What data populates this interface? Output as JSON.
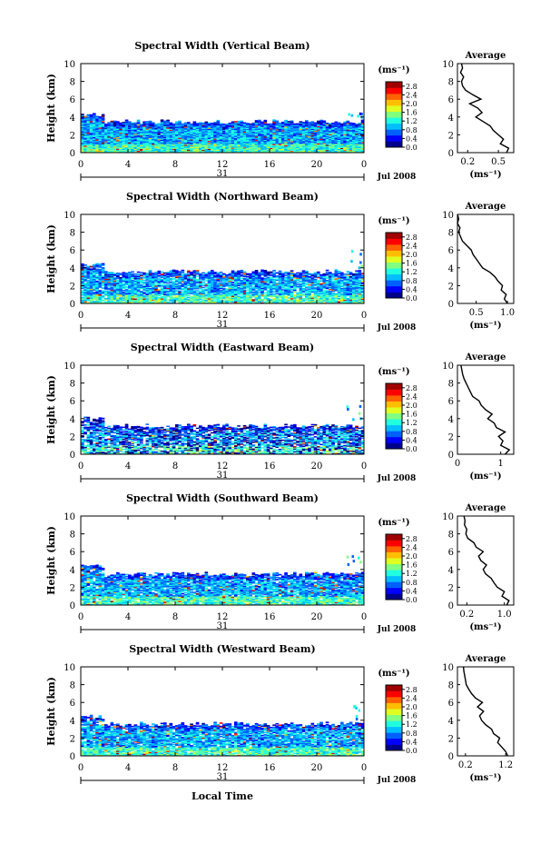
{
  "figure": {
    "xlabel": "Local Time",
    "day_label": "31",
    "month_label": "Jul 2008",
    "unit_label": "(ms⁻¹)",
    "avg_title": "Average",
    "ylabel": "Height (km)"
  },
  "chart_data": [
    {
      "type": "heatmap",
      "title": "Spectral Width (Vertical Beam)",
      "xlim": [
        0,
        24
      ],
      "ylim": [
        0,
        10
      ],
      "xticks": [
        "0",
        "4",
        "8",
        "12",
        "16",
        "20",
        "0"
      ],
      "yticks": [
        "0",
        "2",
        "4",
        "6",
        "8",
        "10"
      ],
      "colorbar": {
        "ticks": [
          "0.0",
          "0.4",
          "0.8",
          "1.2",
          "1.6",
          "2.0",
          "2.4",
          "2.8"
        ],
        "range": [
          0,
          3.0
        ]
      },
      "cloud_top_km": 3.5,
      "average_profile": {
        "xticks": [
          "0.2",
          "0.5"
        ],
        "xlim": [
          0.1,
          0.65
        ],
        "height_km": [
          0,
          0.5,
          1,
          1.5,
          2,
          2.5,
          3,
          3.5,
          4,
          4.5,
          5,
          5.5,
          6,
          6.5,
          7,
          7.5,
          8,
          8.5,
          9,
          9.5,
          10
        ],
        "value": [
          0.58,
          0.6,
          0.52,
          0.55,
          0.5,
          0.45,
          0.42,
          0.35,
          0.28,
          0.34,
          0.3,
          0.22,
          0.33,
          0.25,
          0.18,
          0.15,
          0.14,
          0.16,
          0.13,
          0.15,
          0.14
        ]
      }
    },
    {
      "type": "heatmap",
      "title": "Spectral Width (Northward Beam)",
      "xlim": [
        0,
        24
      ],
      "ylim": [
        0,
        10
      ],
      "xticks": [
        "0",
        "4",
        "8",
        "12",
        "16",
        "20",
        "0"
      ],
      "yticks": [
        "0",
        "2",
        "4",
        "6",
        "8",
        "10"
      ],
      "colorbar": {
        "ticks": [
          "0.0",
          "0.4",
          "0.8",
          "1.2",
          "1.6",
          "2.0",
          "2.4",
          "2.8"
        ],
        "range": [
          0,
          3.0
        ]
      },
      "cloud_top_km": 3.6,
      "average_profile": {
        "xticks": [
          "0.5",
          "1.0"
        ],
        "xlim": [
          0.2,
          1.1
        ],
        "height_km": [
          0,
          0.5,
          1,
          1.5,
          2,
          2.5,
          3,
          3.5,
          4,
          4.5,
          5,
          5.5,
          6,
          6.5,
          7,
          7.5,
          8,
          8.5,
          9,
          9.5,
          10
        ],
        "value": [
          1.0,
          0.95,
          0.98,
          0.9,
          0.92,
          0.85,
          0.8,
          0.72,
          0.6,
          0.55,
          0.5,
          0.45,
          0.42,
          0.35,
          0.28,
          0.25,
          0.22,
          0.24,
          0.2,
          0.22,
          0.2
        ]
      }
    },
    {
      "type": "heatmap",
      "title": "Spectral Width (Eastward Beam)",
      "xlim": [
        0,
        24
      ],
      "ylim": [
        0,
        10
      ],
      "xticks": [
        "0",
        "4",
        "8",
        "12",
        "16",
        "20",
        "0"
      ],
      "yticks": [
        "0",
        "2",
        "4",
        "6",
        "8",
        "10"
      ],
      "colorbar": {
        "ticks": [
          "0.0",
          "0.4",
          "0.8",
          "1.2",
          "1.6",
          "2.0",
          "2.4",
          "2.8"
        ],
        "range": [
          0,
          3.0
        ]
      },
      "cloud_top_km": 3.2,
      "average_profile": {
        "xticks": [
          "0",
          "1"
        ],
        "xlim": [
          0,
          1.3
        ],
        "height_km": [
          0,
          0.5,
          1,
          1.5,
          2,
          2.5,
          3,
          3.5,
          4,
          4.5,
          5,
          5.5,
          6,
          6.5,
          7,
          7.5,
          8,
          8.5,
          9,
          9.5,
          10
        ],
        "value": [
          1.1,
          1.2,
          1.0,
          1.05,
          0.95,
          1.1,
          0.9,
          0.85,
          0.7,
          0.8,
          0.65,
          0.55,
          0.5,
          0.35,
          0.3,
          0.25,
          0.2,
          0.15,
          0.12,
          0.1,
          0.08
        ]
      }
    },
    {
      "type": "heatmap",
      "title": "Spectral Width (Southward Beam)",
      "xlim": [
        0,
        24
      ],
      "ylim": [
        0,
        10
      ],
      "xticks": [
        "0",
        "4",
        "8",
        "12",
        "16",
        "20",
        "0"
      ],
      "yticks": [
        "0",
        "2",
        "4",
        "6",
        "8",
        "10"
      ],
      "colorbar": {
        "ticks": [
          "0.0",
          "0.4",
          "0.8",
          "1.2",
          "1.6",
          "2.0",
          "2.4",
          "2.8"
        ],
        "range": [
          0,
          3.0
        ]
      },
      "cloud_top_km": 3.5,
      "average_profile": {
        "xticks": [
          "0.2",
          "1.0"
        ],
        "xlim": [
          0.0,
          1.2
        ],
        "height_km": [
          0,
          0.5,
          1,
          1.5,
          2,
          2.5,
          3,
          3.5,
          4,
          4.5,
          5,
          5.5,
          6,
          6.5,
          7,
          7.5,
          8,
          8.5,
          9,
          9.5,
          10
        ],
        "value": [
          1.05,
          1.1,
          0.95,
          1.0,
          0.85,
          0.78,
          0.72,
          0.6,
          0.55,
          0.62,
          0.5,
          0.45,
          0.55,
          0.4,
          0.35,
          0.22,
          0.18,
          0.2,
          0.15,
          0.16,
          0.14
        ]
      }
    },
    {
      "type": "heatmap",
      "title": "Spectral Width (Westward Beam)",
      "xlim": [
        0,
        24
      ],
      "ylim": [
        0,
        10
      ],
      "xticks": [
        "0",
        "4",
        "8",
        "12",
        "16",
        "20",
        "0"
      ],
      "yticks": [
        "0",
        "2",
        "4",
        "6",
        "8",
        "10"
      ],
      "colorbar": {
        "ticks": [
          "0.0",
          "0.4",
          "0.8",
          "1.2",
          "1.6",
          "2.0",
          "2.4",
          "2.8"
        ],
        "range": [
          0,
          3.0
        ]
      },
      "cloud_top_km": 3.6,
      "average_profile": {
        "xticks": [
          "0.2",
          "1.2"
        ],
        "xlim": [
          0.0,
          1.4
        ],
        "height_km": [
          0,
          0.5,
          1,
          1.5,
          2,
          2.5,
          3,
          3.5,
          4,
          4.5,
          5,
          5.5,
          6,
          6.5,
          7,
          7.5,
          8,
          8.5,
          9,
          9.5,
          10
        ],
        "value": [
          1.25,
          1.2,
          1.1,
          1.0,
          1.05,
          0.9,
          0.85,
          0.7,
          0.6,
          0.55,
          0.65,
          0.5,
          0.62,
          0.45,
          0.35,
          0.28,
          0.22,
          0.2,
          0.18,
          0.16,
          0.15
        ]
      }
    }
  ]
}
